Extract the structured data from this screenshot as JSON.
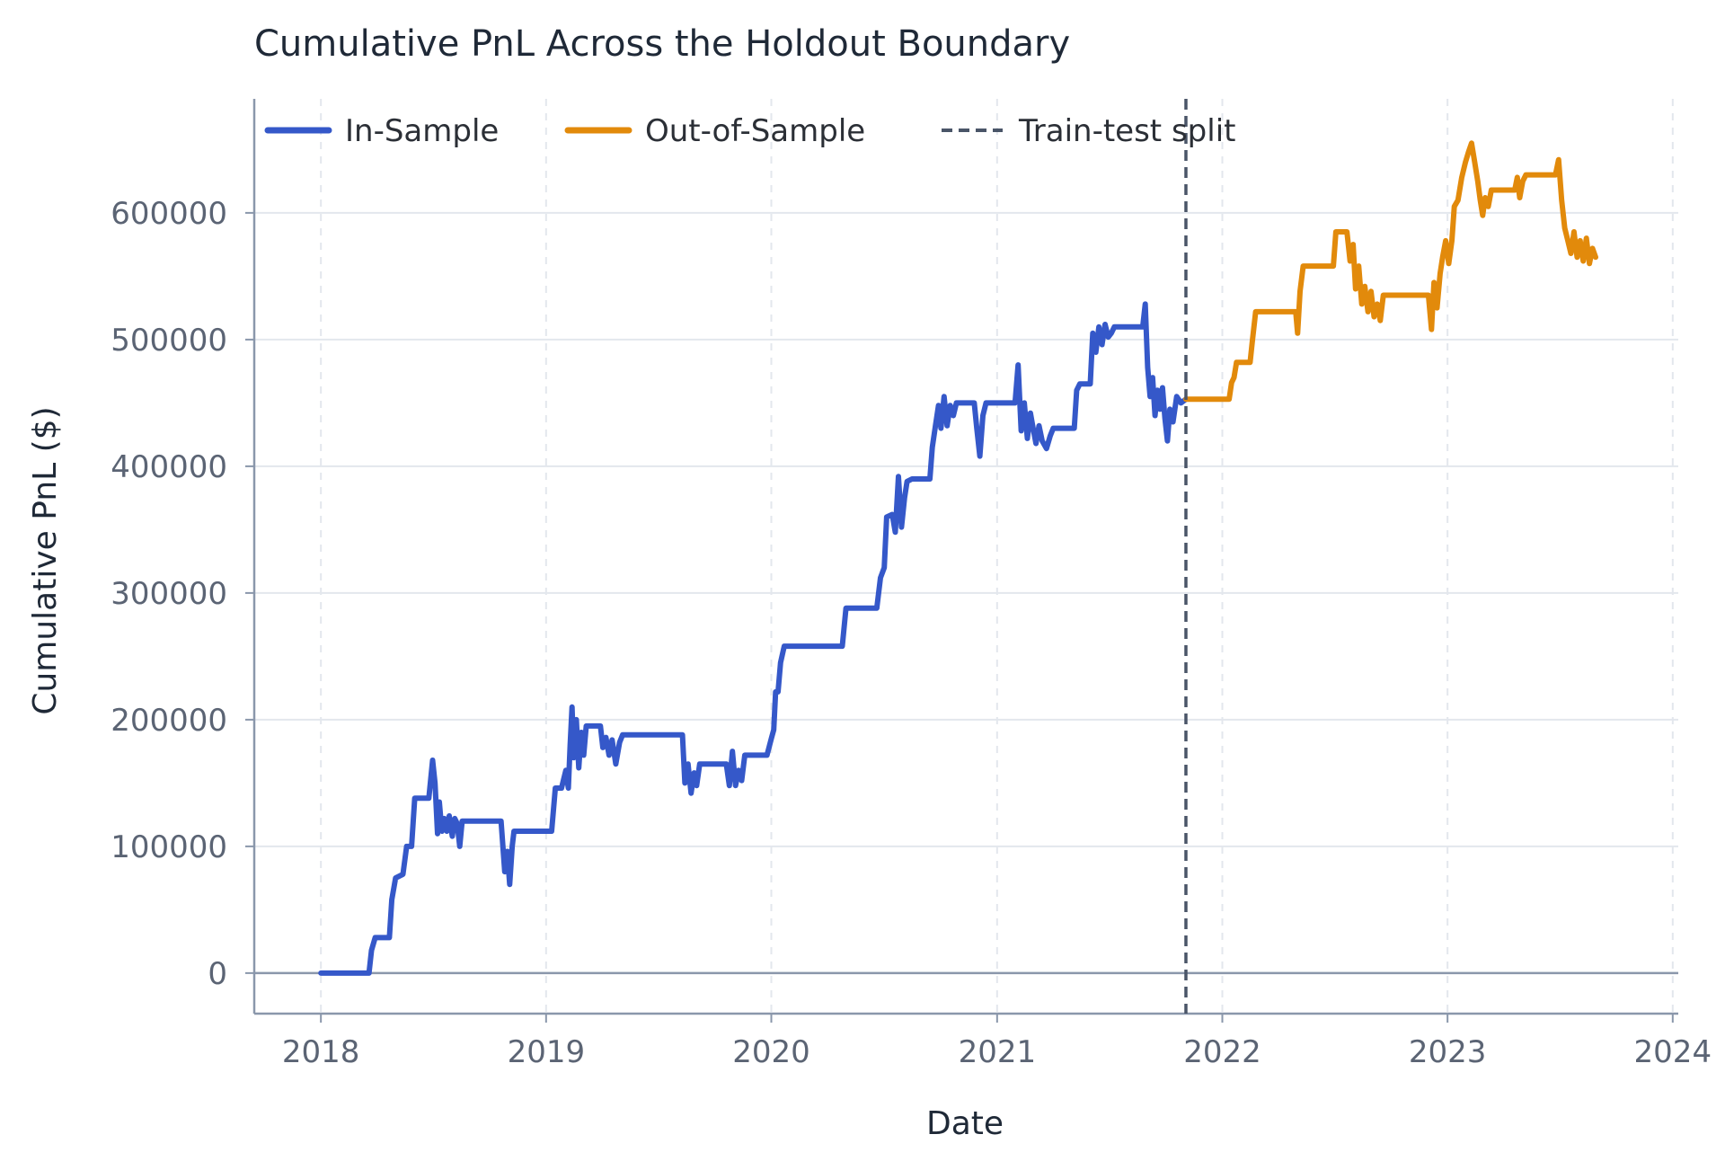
{
  "chart_data": {
    "type": "line",
    "title": "Cumulative PnL Across the Holdout Boundary",
    "xlabel": "Date",
    "ylabel": "Cumulative PnL ($)",
    "x_type": "date",
    "xlim": [
      "2017-09-15",
      "2024-01-10"
    ],
    "ylim": [
      -32000,
      690000
    ],
    "x_ticks": [
      "2018",
      "2019",
      "2020",
      "2021",
      "2022",
      "2023",
      "2024"
    ],
    "x_tick_dates": [
      "2018-01-01",
      "2019-01-01",
      "2020-01-01",
      "2021-01-01",
      "2022-01-01",
      "2023-01-01",
      "2024-01-01"
    ],
    "y_ticks": [
      0,
      100000,
      200000,
      300000,
      400000,
      500000,
      600000
    ],
    "y_tick_labels": [
      "0",
      "100000",
      "200000",
      "300000",
      "400000",
      "500000",
      "600000"
    ],
    "grid": true,
    "legend_position": "top-left",
    "split": {
      "name": "Train-test split",
      "x": "2021-11-03",
      "color": "#4a5568"
    },
    "series": [
      {
        "name": "In-Sample",
        "color": "#3558c9",
        "points": [
          [
            "2018-01-01",
            0
          ],
          [
            "2018-03-20",
            0
          ],
          [
            "2018-03-24",
            18000
          ],
          [
            "2018-03-30",
            28000
          ],
          [
            "2018-04-10",
            28000
          ],
          [
            "2018-04-22",
            28000
          ],
          [
            "2018-04-26",
            58000
          ],
          [
            "2018-05-02",
            75000
          ],
          [
            "2018-05-14",
            78000
          ],
          [
            "2018-05-20",
            100000
          ],
          [
            "2018-05-28",
            100000
          ],
          [
            "2018-06-02",
            138000
          ],
          [
            "2018-06-25",
            138000
          ],
          [
            "2018-07-01",
            168000
          ],
          [
            "2018-07-05",
            150000
          ],
          [
            "2018-07-09",
            110000
          ],
          [
            "2018-07-12",
            135000
          ],
          [
            "2018-07-16",
            112000
          ],
          [
            "2018-07-20",
            122000
          ],
          [
            "2018-07-24",
            112000
          ],
          [
            "2018-07-28",
            124000
          ],
          [
            "2018-08-02",
            108000
          ],
          [
            "2018-08-06",
            122000
          ],
          [
            "2018-08-10",
            118000
          ],
          [
            "2018-08-14",
            100000
          ],
          [
            "2018-08-18",
            120000
          ],
          [
            "2018-08-25",
            120000
          ],
          [
            "2018-10-20",
            120000
          ],
          [
            "2018-10-26",
            80000
          ],
          [
            "2018-10-30",
            96000
          ],
          [
            "2018-11-03",
            70000
          ],
          [
            "2018-11-07",
            100000
          ],
          [
            "2018-11-10",
            112000
          ],
          [
            "2019-01-10",
            112000
          ],
          [
            "2019-01-16",
            146000
          ],
          [
            "2019-01-26",
            146000
          ],
          [
            "2019-02-02",
            160000
          ],
          [
            "2019-02-06",
            146000
          ],
          [
            "2019-02-09",
            180000
          ],
          [
            "2019-02-12",
            210000
          ],
          [
            "2019-02-15",
            170000
          ],
          [
            "2019-02-19",
            200000
          ],
          [
            "2019-02-23",
            162000
          ],
          [
            "2019-02-27",
            190000
          ],
          [
            "2019-03-03",
            172000
          ],
          [
            "2019-03-07",
            195000
          ],
          [
            "2019-03-30",
            195000
          ],
          [
            "2019-04-03",
            178000
          ],
          [
            "2019-04-08",
            186000
          ],
          [
            "2019-04-13",
            172000
          ],
          [
            "2019-04-18",
            184000
          ],
          [
            "2019-04-24",
            165000
          ],
          [
            "2019-04-30",
            182000
          ],
          [
            "2019-05-05",
            188000
          ],
          [
            "2019-08-10",
            188000
          ],
          [
            "2019-08-14",
            150000
          ],
          [
            "2019-08-19",
            165000
          ],
          [
            "2019-08-24",
            142000
          ],
          [
            "2019-08-29",
            158000
          ],
          [
            "2019-09-02",
            148000
          ],
          [
            "2019-09-07",
            165000
          ],
          [
            "2019-10-20",
            165000
          ],
          [
            "2019-10-25",
            148000
          ],
          [
            "2019-10-30",
            175000
          ],
          [
            "2019-11-04",
            148000
          ],
          [
            "2019-11-09",
            160000
          ],
          [
            "2019-11-14",
            152000
          ],
          [
            "2019-11-19",
            172000
          ],
          [
            "2019-12-25",
            172000
          ],
          [
            "2020-01-01",
            185000
          ],
          [
            "2020-01-05",
            192000
          ],
          [
            "2020-01-08",
            222000
          ],
          [
            "2020-01-12",
            222000
          ],
          [
            "2020-01-16",
            245000
          ],
          [
            "2020-01-22",
            258000
          ],
          [
            "2020-04-25",
            258000
          ],
          [
            "2020-05-01",
            288000
          ],
          [
            "2020-05-08",
            288000
          ],
          [
            "2020-06-20",
            288000
          ],
          [
            "2020-06-26",
            312000
          ],
          [
            "2020-07-02",
            320000
          ],
          [
            "2020-07-06",
            360000
          ],
          [
            "2020-07-15",
            362000
          ],
          [
            "2020-07-20",
            348000
          ],
          [
            "2020-07-25",
            392000
          ],
          [
            "2020-07-30",
            352000
          ],
          [
            "2020-08-04",
            375000
          ],
          [
            "2020-08-08",
            388000
          ],
          [
            "2020-08-16",
            390000
          ],
          [
            "2020-09-14",
            390000
          ],
          [
            "2020-09-18",
            415000
          ],
          [
            "2020-09-23",
            432000
          ],
          [
            "2020-09-28",
            448000
          ],
          [
            "2020-10-02",
            430000
          ],
          [
            "2020-10-07",
            455000
          ],
          [
            "2020-10-12",
            432000
          ],
          [
            "2020-10-17",
            448000
          ],
          [
            "2020-10-22",
            440000
          ],
          [
            "2020-10-27",
            450000
          ],
          [
            "2020-11-25",
            450000
          ],
          [
            "2020-11-29",
            430000
          ],
          [
            "2020-12-04",
            408000
          ],
          [
            "2020-12-09",
            440000
          ],
          [
            "2020-12-14",
            450000
          ],
          [
            "2021-01-30",
            450000
          ],
          [
            "2021-02-04",
            480000
          ],
          [
            "2021-02-09",
            428000
          ],
          [
            "2021-02-14",
            450000
          ],
          [
            "2021-02-19",
            422000
          ],
          [
            "2021-02-24",
            442000
          ],
          [
            "2021-03-01",
            428000
          ],
          [
            "2021-03-05",
            418000
          ],
          [
            "2021-03-10",
            432000
          ],
          [
            "2021-03-15",
            420000
          ],
          [
            "2021-03-22",
            414000
          ],
          [
            "2021-03-28",
            424000
          ],
          [
            "2021-04-02",
            430000
          ],
          [
            "2021-05-06",
            430000
          ],
          [
            "2021-05-10",
            460000
          ],
          [
            "2021-05-15",
            465000
          ],
          [
            "2021-06-01",
            465000
          ],
          [
            "2021-06-05",
            505000
          ],
          [
            "2021-06-10",
            490000
          ],
          [
            "2021-06-15",
            510000
          ],
          [
            "2021-06-20",
            496000
          ],
          [
            "2021-06-25",
            512000
          ],
          [
            "2021-06-30",
            502000
          ],
          [
            "2021-07-05",
            505000
          ],
          [
            "2021-07-10",
            510000
          ],
          [
            "2021-08-25",
            510000
          ],
          [
            "2021-08-29",
            528000
          ],
          [
            "2021-09-02",
            478000
          ],
          [
            "2021-09-06",
            455000
          ],
          [
            "2021-09-10",
            470000
          ],
          [
            "2021-09-14",
            440000
          ],
          [
            "2021-09-18",
            460000
          ],
          [
            "2021-09-22",
            445000
          ],
          [
            "2021-09-26",
            462000
          ],
          [
            "2021-09-30",
            438000
          ],
          [
            "2021-10-04",
            420000
          ],
          [
            "2021-10-08",
            445000
          ],
          [
            "2021-10-13",
            435000
          ],
          [
            "2021-10-19",
            455000
          ],
          [
            "2021-10-26",
            450000
          ],
          [
            "2021-11-03",
            453000
          ]
        ]
      },
      {
        "name": "Out-of-Sample",
        "color": "#e28a0b",
        "points": [
          [
            "2021-11-03",
            453000
          ],
          [
            "2022-01-12",
            453000
          ],
          [
            "2022-01-16",
            466000
          ],
          [
            "2022-01-20",
            470000
          ],
          [
            "2022-01-24",
            482000
          ],
          [
            "2022-02-15",
            482000
          ],
          [
            "2022-02-19",
            500000
          ],
          [
            "2022-02-24",
            522000
          ],
          [
            "2022-04-30",
            522000
          ],
          [
            "2022-05-03",
            505000
          ],
          [
            "2022-05-07",
            538000
          ],
          [
            "2022-05-12",
            558000
          ],
          [
            "2022-06-30",
            558000
          ],
          [
            "2022-07-04",
            585000
          ],
          [
            "2022-07-22",
            585000
          ],
          [
            "2022-07-27",
            562000
          ],
          [
            "2022-08-01",
            575000
          ],
          [
            "2022-08-05",
            540000
          ],
          [
            "2022-08-10",
            558000
          ],
          [
            "2022-08-15",
            528000
          ],
          [
            "2022-08-20",
            542000
          ],
          [
            "2022-08-25",
            522000
          ],
          [
            "2022-08-30",
            538000
          ],
          [
            "2022-09-04",
            518000
          ],
          [
            "2022-09-09",
            528000
          ],
          [
            "2022-09-14",
            515000
          ],
          [
            "2022-09-19",
            535000
          ],
          [
            "2022-12-01",
            535000
          ],
          [
            "2022-12-06",
            508000
          ],
          [
            "2022-12-10",
            545000
          ],
          [
            "2022-12-15",
            525000
          ],
          [
            "2022-12-20",
            552000
          ],
          [
            "2022-12-24",
            565000
          ],
          [
            "2022-12-29",
            578000
          ],
          [
            "2023-01-03",
            560000
          ],
          [
            "2023-01-08",
            578000
          ],
          [
            "2023-01-12",
            605000
          ],
          [
            "2023-01-18",
            610000
          ],
          [
            "2023-01-24",
            628000
          ],
          [
            "2023-01-30",
            640000
          ],
          [
            "2023-02-04",
            648000
          ],
          [
            "2023-02-09",
            655000
          ],
          [
            "2023-02-14",
            640000
          ],
          [
            "2023-02-19",
            625000
          ],
          [
            "2023-02-23",
            610000
          ],
          [
            "2023-02-27",
            598000
          ],
          [
            "2023-03-03",
            612000
          ],
          [
            "2023-03-08",
            605000
          ],
          [
            "2023-03-13",
            618000
          ],
          [
            "2023-04-20",
            618000
          ],
          [
            "2023-04-24",
            628000
          ],
          [
            "2023-04-28",
            612000
          ],
          [
            "2023-05-03",
            625000
          ],
          [
            "2023-05-08",
            630000
          ],
          [
            "2023-06-25",
            630000
          ],
          [
            "2023-06-30",
            642000
          ],
          [
            "2023-07-05",
            610000
          ],
          [
            "2023-07-10",
            588000
          ],
          [
            "2023-07-15",
            578000
          ],
          [
            "2023-07-20",
            568000
          ],
          [
            "2023-07-25",
            585000
          ],
          [
            "2023-07-30",
            565000
          ],
          [
            "2023-08-04",
            578000
          ],
          [
            "2023-08-09",
            562000
          ],
          [
            "2023-08-14",
            580000
          ],
          [
            "2023-08-19",
            560000
          ],
          [
            "2023-08-24",
            572000
          ],
          [
            "2023-08-29",
            565000
          ]
        ]
      }
    ]
  }
}
